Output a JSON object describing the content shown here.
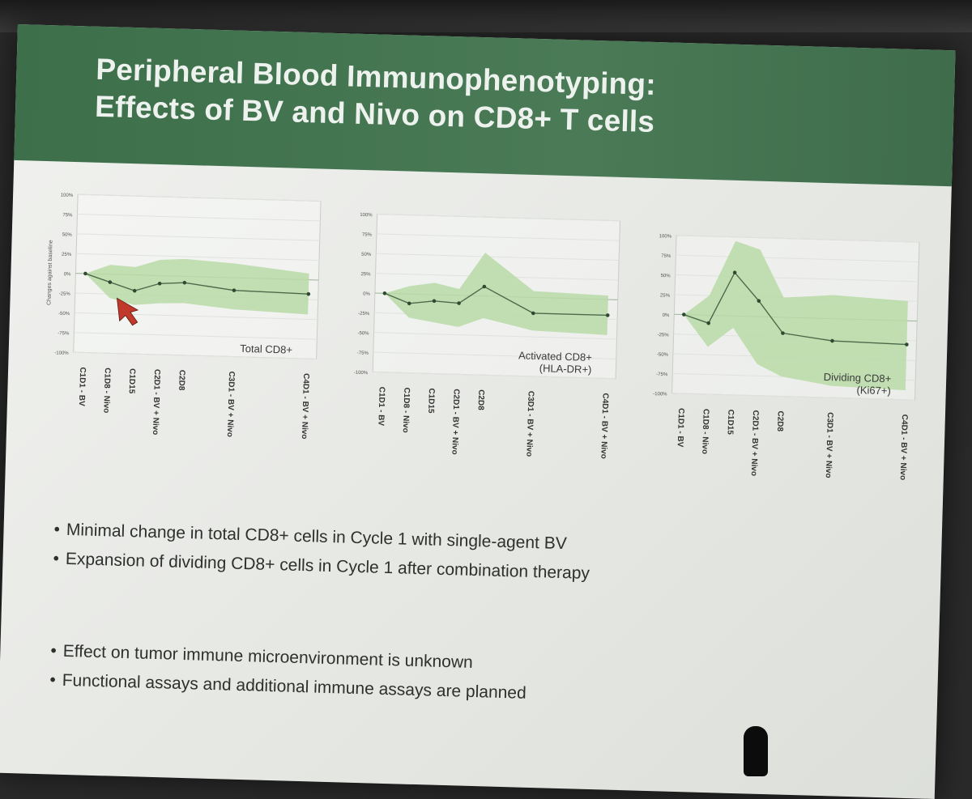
{
  "title": {
    "line1": "Peripheral Blood Immunophenotyping:",
    "line2": "Effects of BV and Nivo on CD8+ T cells"
  },
  "chart_data": [
    {
      "type": "line",
      "title": "Total CD8+",
      "ylabel": "Changes against baseline",
      "y_ticks": [
        "100%",
        "75%",
        "50%",
        "25%",
        "0%",
        "-25%",
        "-50%",
        "-75%",
        "-100%"
      ],
      "ylim": [
        -100,
        100
      ],
      "categories": [
        "C1D1 - BV",
        "C1D8 - Nivo",
        "C1D15",
        "C2D1 - BV + Nivo",
        "C2D8",
        "C3D1 - BV + Nivo",
        "C4D1 - BV + Nivo"
      ],
      "x_positions": [
        0,
        1,
        2,
        3,
        4,
        6,
        9
      ],
      "series": [
        {
          "values": [
            0,
            -10,
            -20,
            -10,
            -8,
            -16,
            -18
          ]
        }
      ],
      "band_upper": [
        0,
        12,
        10,
        20,
        22,
        18,
        8
      ],
      "band_lower": [
        0,
        -30,
        -38,
        -35,
        -34,
        -40,
        -44
      ],
      "grid": true
    },
    {
      "type": "line",
      "title": "Activated CD8+\n(HLA-DR+)",
      "y_ticks": [
        "100%",
        "75%",
        "50%",
        "25%",
        "0%",
        "-25%",
        "-50%",
        "-75%",
        "-100%"
      ],
      "ylim": [
        -100,
        100
      ],
      "categories": [
        "C1D1 - BV",
        "C1D8 - Nivo",
        "C1D15",
        "C2D1 - BV + Nivo",
        "C2D8",
        "C3D1 - BV + Nivo",
        "C4D1 - BV + Nivo"
      ],
      "x_positions": [
        0,
        1,
        2,
        3,
        4,
        6,
        9
      ],
      "series": [
        {
          "values": [
            0,
            -12,
            -8,
            -10,
            12,
            -20,
            -20
          ]
        }
      ],
      "band_upper": [
        0,
        10,
        15,
        8,
        55,
        8,
        5
      ],
      "band_lower": [
        0,
        -30,
        -35,
        -40,
        -28,
        -42,
        -45
      ],
      "grid": true
    },
    {
      "type": "line",
      "title": "Dividing CD8+\n(Ki67+)",
      "y_ticks": [
        "100%",
        "75%",
        "50%",
        "25%",
        "0%",
        "-25%",
        "-50%",
        "-75%",
        "-100%"
      ],
      "ylim": [
        -100,
        100
      ],
      "categories": [
        "C1D1 - BV",
        "C1D8 - Nivo",
        "C1D15",
        "C2D1 - BV + Nivo",
        "C2D8",
        "C3D1 - BV + Nivo",
        "C4D1 - BV + Nivo"
      ],
      "x_positions": [
        0,
        1,
        2,
        3,
        4,
        6,
        9
      ],
      "series": [
        {
          "values": [
            0,
            -10,
            55,
            20,
            -20,
            -28,
            -30
          ]
        }
      ],
      "band_upper": [
        0,
        25,
        95,
        85,
        25,
        30,
        25
      ],
      "band_lower": [
        0,
        -40,
        -15,
        -60,
        -75,
        -85,
        -88
      ],
      "grid": true
    }
  ],
  "bullets_a": [
    "Minimal change in total CD8+ cells in Cycle 1 with single-agent BV",
    "Expansion of dividing CD8+ cells in Cycle 1 after combination therapy"
  ],
  "bullets_b": [
    "Effect on tumor immune microenvironment is unknown",
    "Functional assays and additional immune assays are planned"
  ],
  "colors": {
    "band": "#b9dba7",
    "line": "#4b6a4b",
    "header": "#4a7a56",
    "pointer": "#c0392b"
  },
  "icons": {
    "pointer": "cursor-arrow-icon"
  }
}
